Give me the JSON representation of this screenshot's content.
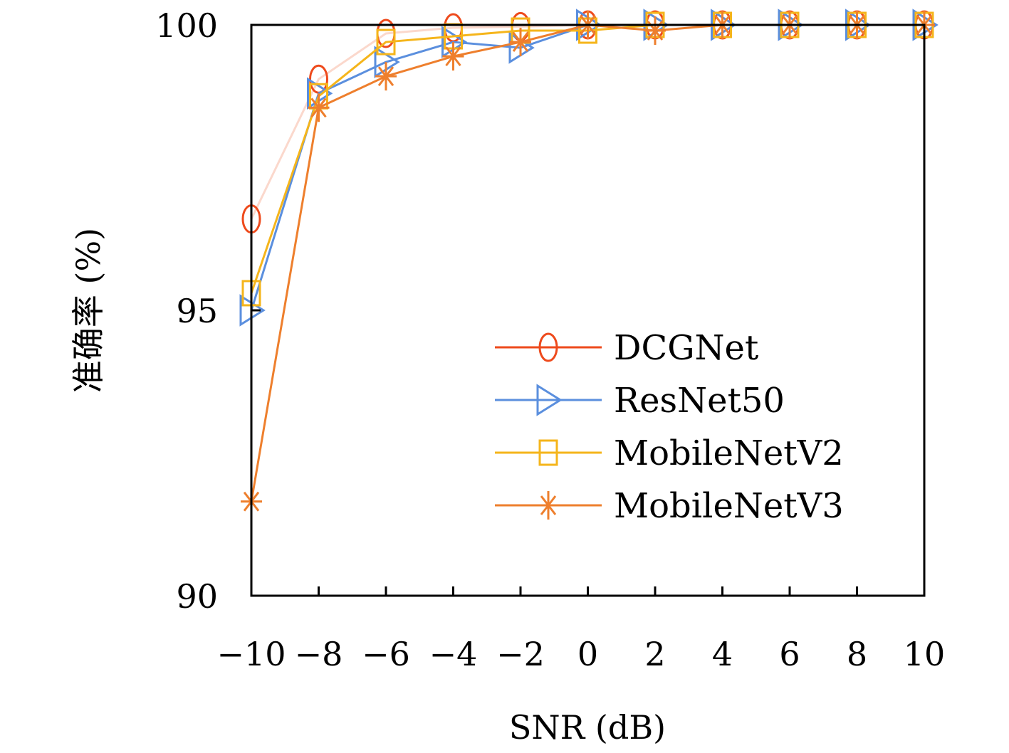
{
  "chart_data": {
    "type": "line",
    "xlabel": "SNR (dB)",
    "ylabel": "准确率 (%)",
    "xlim": [
      -10,
      10
    ],
    "ylim": [
      90,
      100
    ],
    "x_ticks": [
      -10,
      -8,
      -6,
      -4,
      -2,
      0,
      2,
      4,
      6,
      8,
      10
    ],
    "x_tick_labels": [
      "−10",
      "−8",
      "−6",
      "−4",
      "−2",
      "0",
      "2",
      "4",
      "6",
      "8",
      "10"
    ],
    "y_ticks": [
      90,
      95,
      100
    ],
    "y_tick_labels": [
      "90",
      "95",
      "100"
    ],
    "legend_position": "lower-right",
    "x": [
      -10,
      -8,
      -6,
      -4,
      -2,
      0,
      2,
      4,
      6,
      8,
      10
    ],
    "series": [
      {
        "name": "DCGNet",
        "marker": "circle",
        "color": "#ee4a1c",
        "line_color": "#fbd8cc",
        "values": [
          96.6,
          99.05,
          99.85,
          99.95,
          99.97,
          100.0,
          100.0,
          100.0,
          100.0,
          100.0,
          100.0
        ]
      },
      {
        "name": "ResNet50",
        "marker": "triangle-right",
        "color": "#5b8fde",
        "line_color": "#5b8fde",
        "values": [
          95.0,
          98.8,
          99.35,
          99.7,
          99.6,
          100.0,
          100.0,
          100.0,
          100.0,
          100.0,
          100.0
        ]
      },
      {
        "name": "MobileNetV2",
        "marker": "square",
        "color": "#f5b51b",
        "line_color": "#f5b51b",
        "values": [
          95.3,
          98.75,
          99.7,
          99.8,
          99.9,
          99.9,
          100.0,
          100.0,
          100.0,
          100.0,
          100.0
        ]
      },
      {
        "name": "MobileNetV3",
        "marker": "asterisk",
        "color": "#ee7f2d",
        "line_color": "#ee7f2d",
        "values": [
          91.65,
          98.55,
          99.1,
          99.45,
          99.7,
          100.0,
          99.9,
          100.0,
          100.0,
          100.0,
          100.0
        ]
      }
    ]
  }
}
